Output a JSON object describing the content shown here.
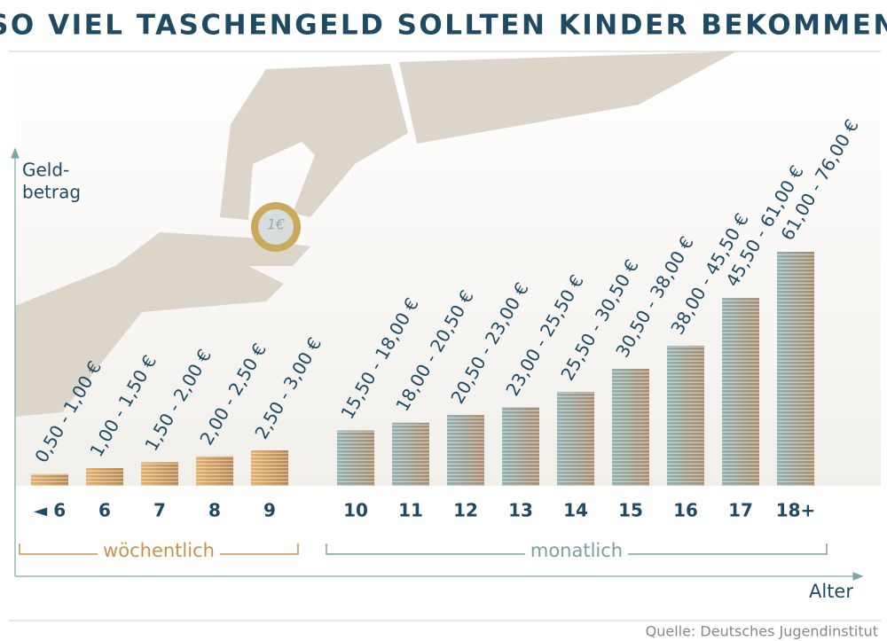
{
  "chart_data": {
    "type": "bar",
    "title": "SO VIEL TASCHENGELD SOLLTEN KINDER BEKOMMEN",
    "y_label_lines": [
      "Geld-",
      "betrag"
    ],
    "x_label": "Alter",
    "source": "Quelle: Deutsches Jugendinstitut",
    "groups": [
      {
        "name": "wöchentlich",
        "color": "#c8924a",
        "categories": [
          "◄ 6",
          "6",
          "7",
          "8",
          "9"
        ],
        "values": [
          1.0,
          1.5,
          2.0,
          2.5,
          3.0
        ],
        "value_labels": [
          "0,50 - 1,00 €",
          "1,00 - 1,50 €",
          "1,50 - 2,00 €",
          "2,00 - 2,50 €",
          "2,50 - 3,00 €"
        ]
      },
      {
        "name": "monatlich",
        "color": "#7a9fa0",
        "categories": [
          "10",
          "11",
          "12",
          "13",
          "14",
          "15",
          "16",
          "17",
          "18+"
        ],
        "values": [
          18.0,
          20.5,
          23.0,
          25.5,
          30.5,
          38.0,
          45.5,
          61.0,
          76.0
        ],
        "value_labels": [
          "15,50 - 18,00 €",
          "18,00 - 20,50 €",
          "20,50 - 23,00 €",
          "23,00 - 25,50 €",
          "25,50 - 30,50 €",
          "30,50 - 38,00 €",
          "38,00 - 45,50 €",
          "45,50 - 61,00 €",
          "61,00 - 76,00 €"
        ]
      }
    ]
  }
}
